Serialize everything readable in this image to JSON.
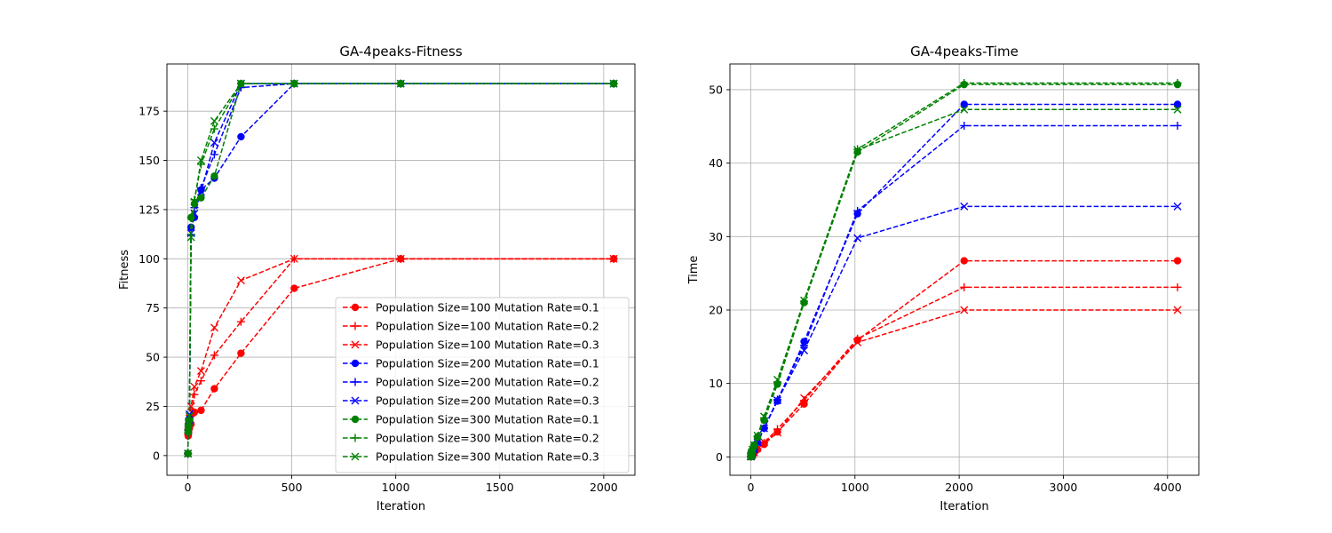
{
  "chart_data": [
    {
      "type": "line",
      "title": "GA-4peaks-Fitness",
      "xlabel": "Iteration",
      "ylabel": "Fitness",
      "xlim": [
        -100,
        2150
      ],
      "ylim": [
        -10,
        199
      ],
      "xticks": [
        0,
        500,
        1000,
        1500,
        2000
      ],
      "yticks": [
        0,
        25,
        50,
        75,
        100,
        125,
        150,
        175
      ],
      "grid": true,
      "legend": "lower-right",
      "x": [
        1,
        2,
        4,
        8,
        16,
        32,
        64,
        128,
        256,
        512,
        1024,
        2048
      ],
      "series": [
        {
          "name": "Population Size=100 Mutation Rate=0.1",
          "color": "#ff0000",
          "marker": "circle",
          "values": [
            1,
            10,
            12,
            14,
            16,
            22,
            23,
            34,
            52,
            85,
            100,
            100
          ]
        },
        {
          "name": "Population Size=100 Mutation Rate=0.2",
          "color": "#ff0000",
          "marker": "plus",
          "values": [
            1,
            11,
            13,
            16,
            20,
            31,
            38,
            51,
            68,
            100,
            100,
            100
          ]
        },
        {
          "name": "Population Size=100 Mutation Rate=0.3",
          "color": "#ff0000",
          "marker": "x",
          "values": [
            1,
            12,
            15,
            19,
            25,
            35,
            43,
            65,
            89,
            100,
            100,
            100
          ]
        },
        {
          "name": "Population Size=200 Mutation Rate=0.1",
          "color": "#0000ff",
          "marker": "circle",
          "values": [
            1,
            12,
            15,
            17,
            116,
            121,
            135,
            141,
            162,
            189,
            189,
            189
          ]
        },
        {
          "name": "Population Size=200 Mutation Rate=0.2",
          "color": "#0000ff",
          "marker": "plus",
          "values": [
            1,
            13,
            16,
            18,
            112,
            126,
            136,
            153,
            187,
            189,
            189,
            189
          ]
        },
        {
          "name": "Population Size=200 Mutation Rate=0.3",
          "color": "#0000ff",
          "marker": "x",
          "values": [
            1,
            13,
            17,
            21,
            113,
            123,
            134,
            159,
            189,
            189,
            189,
            189
          ]
        },
        {
          "name": "Population Size=300 Mutation Rate=0.1",
          "color": "#008000",
          "marker": "circle",
          "values": [
            1,
            12,
            15,
            18,
            121,
            128,
            131,
            142,
            189,
            189,
            189,
            189
          ]
        },
        {
          "name": "Population Size=300 Mutation Rate=0.2",
          "color": "#008000",
          "marker": "plus",
          "values": [
            1,
            13,
            16,
            19,
            121,
            130,
            148,
            166,
            189,
            189,
            189,
            189
          ]
        },
        {
          "name": "Population Size=300 Mutation Rate=0.3",
          "color": "#008000",
          "marker": "x",
          "values": [
            1,
            13,
            16,
            20,
            111,
            129,
            150,
            170,
            189,
            189,
            189,
            189
          ]
        }
      ]
    },
    {
      "type": "line",
      "title": "GA-4peaks-Time",
      "xlabel": "Iteration",
      "ylabel": "Time",
      "xlim": [
        -200,
        4300
      ],
      "ylim": [
        -2.5,
        53.5
      ],
      "xticks": [
        0,
        1000,
        2000,
        3000,
        4000
      ],
      "yticks": [
        0,
        10,
        20,
        30,
        40,
        50
      ],
      "grid": true,
      "x": [
        1,
        2,
        4,
        8,
        16,
        32,
        64,
        128,
        256,
        512,
        1024,
        2048,
        4096
      ],
      "series": [
        {
          "name": "Population Size=100 Mutation Rate=0.1",
          "color": "#ff0000",
          "marker": "circle",
          "values": [
            0.02,
            0.05,
            0.1,
            0.2,
            0.3,
            0.5,
            1.0,
            1.7,
            3.4,
            7.2,
            15.9,
            26.7,
            26.7
          ]
        },
        {
          "name": "Population Size=100 Mutation Rate=0.2",
          "color": "#ff0000",
          "marker": "plus",
          "values": [
            0.02,
            0.05,
            0.1,
            0.2,
            0.3,
            0.5,
            1.1,
            1.9,
            3.8,
            7.7,
            16.1,
            23.1,
            23.1
          ]
        },
        {
          "name": "Population Size=100 Mutation Rate=0.3",
          "color": "#ff0000",
          "marker": "x",
          "values": [
            0.02,
            0.05,
            0.1,
            0.2,
            0.3,
            0.6,
            1.2,
            2.0,
            3.3,
            8.0,
            15.6,
            20.0,
            20.0
          ]
        },
        {
          "name": "Population Size=200 Mutation Rate=0.1",
          "color": "#0000ff",
          "marker": "circle",
          "values": [
            0.04,
            0.08,
            0.2,
            0.4,
            0.6,
            1.0,
            2.0,
            3.9,
            7.6,
            15.7,
            33.1,
            48.0,
            48.0
          ]
        },
        {
          "name": "Population Size=200 Mutation Rate=0.2",
          "color": "#0000ff",
          "marker": "plus",
          "values": [
            0.04,
            0.08,
            0.2,
            0.4,
            0.6,
            1.0,
            2.0,
            3.9,
            7.8,
            15.2,
            33.5,
            45.1,
            45.1
          ]
        },
        {
          "name": "Population Size=200 Mutation Rate=0.3",
          "color": "#0000ff",
          "marker": "x",
          "values": [
            0.04,
            0.08,
            0.2,
            0.4,
            0.6,
            1.0,
            2.0,
            3.9,
            7.7,
            14.5,
            29.8,
            34.1,
            34.1
          ]
        },
        {
          "name": "Population Size=300 Mutation Rate=0.1",
          "color": "#008000",
          "marker": "circle",
          "values": [
            0.06,
            0.12,
            0.3,
            0.6,
            1.0,
            1.6,
            2.7,
            5.0,
            9.9,
            21.0,
            41.5,
            50.7,
            50.7
          ]
        },
        {
          "name": "Population Size=300 Mutation Rate=0.2",
          "color": "#008000",
          "marker": "plus",
          "values": [
            0.06,
            0.12,
            0.3,
            0.6,
            1.0,
            1.6,
            2.8,
            5.3,
            10.2,
            21.2,
            41.9,
            50.9,
            50.9
          ]
        },
        {
          "name": "Population Size=300 Mutation Rate=0.3",
          "color": "#008000",
          "marker": "x",
          "values": [
            0.06,
            0.12,
            0.3,
            0.6,
            1.0,
            1.6,
            2.9,
            5.5,
            10.5,
            21.3,
            41.8,
            47.3,
            47.3
          ]
        }
      ]
    }
  ]
}
